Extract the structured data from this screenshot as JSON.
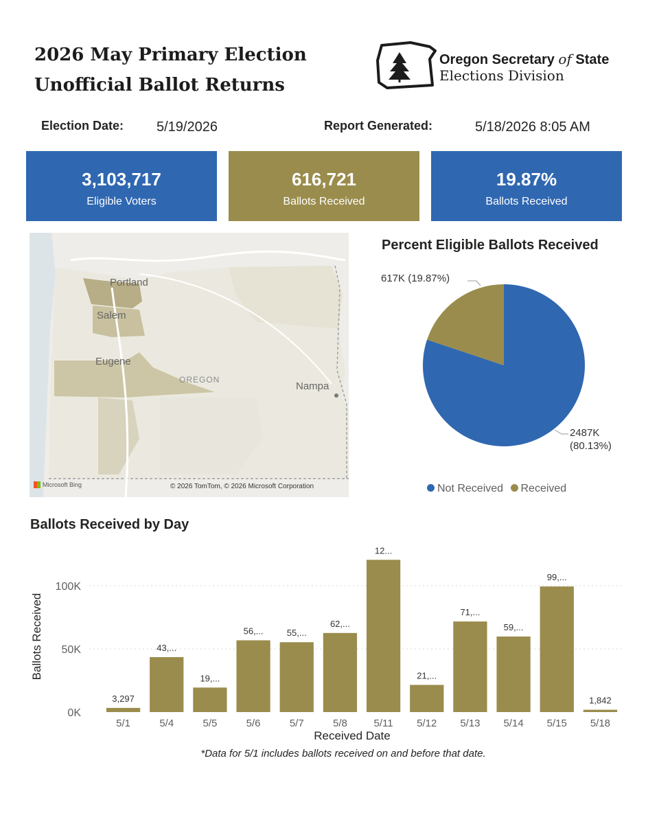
{
  "header": {
    "title_line1": "2026 May Primary Election",
    "title_line2": "Unofficial Ballot Returns",
    "logo_line1a": "Oregon Secretary ",
    "logo_line1b": "of",
    "logo_line1c": " State",
    "logo_line2": "Elections Division"
  },
  "meta": {
    "election_date_label": "Election Date:",
    "election_date": "5/19/2026",
    "report_label": "Report Generated:",
    "report_value": "5/18/2026 8:05 AM"
  },
  "kpis": [
    {
      "value": "3,103,717",
      "caption": "Eligible Voters",
      "color": "#2f67b1"
    },
    {
      "value": "616,721",
      "caption": "Ballots Received",
      "color": "#9a8c4c"
    },
    {
      "value": "19.87%",
      "caption": "Ballots Received",
      "color": "#2f67b1"
    }
  ],
  "map": {
    "cities": [
      "Portland",
      "Salem",
      "Eugene",
      "Nampa"
    ],
    "state_label": "OREGON",
    "provider": "Microsoft Bing",
    "copyright": "© 2026 TomTom, © 2026 Microsoft Corporation"
  },
  "chart_data": [
    {
      "type": "pie",
      "title": "Percent Eligible Ballots Received",
      "slices": [
        {
          "name": "Not Received",
          "value": 2487,
          "label": "2487K",
          "pct_label": "(80.13%)",
          "color": "#2f67b1"
        },
        {
          "name": "Received",
          "value": 617,
          "label": "617K (19.87%)",
          "color": "#9a8c4c"
        }
      ],
      "legend": [
        "Not Received",
        "Received"
      ],
      "legend_position": "bottom"
    },
    {
      "type": "bar",
      "title": "Ballots Received by Day",
      "xlabel": "Received Date",
      "ylabel": "Ballots Received",
      "categories": [
        "5/1",
        "5/4",
        "5/5",
        "5/6",
        "5/7",
        "5/8",
        "5/11",
        "5/12",
        "5/13",
        "5/14",
        "5/15",
        "5/18"
      ],
      "values": [
        3297,
        43500,
        19400,
        56800,
        55300,
        62600,
        120500,
        21500,
        71700,
        59800,
        99400,
        1842
      ],
      "data_labels": [
        "3,297",
        "43,...",
        "19,...",
        "56,...",
        "55,...",
        "62,...",
        "12...",
        "21,...",
        "71,...",
        "59,...",
        "99,...",
        "1,842"
      ],
      "yticks": [
        "0K",
        "50K",
        "100K"
      ],
      "ylim": [
        0,
        100000
      ],
      "grid": true,
      "color": "#9a8c4c"
    }
  ],
  "footnote": "*Data for 5/1 includes ballots received on and before that date."
}
